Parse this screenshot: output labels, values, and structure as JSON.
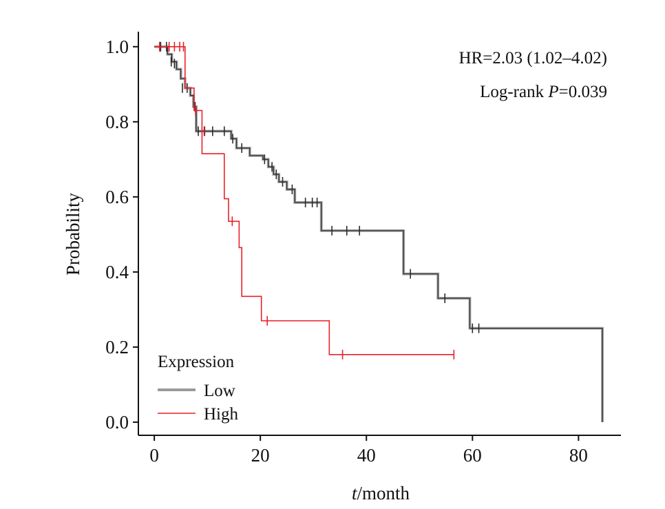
{
  "chart_data": {
    "type": "line",
    "plot_style": "kaplan-meier",
    "xlabel_italic": "t",
    "xlabel_rest": "/month",
    "ylabel": "Probability",
    "xlim": [
      -3,
      88
    ],
    "ylim": [
      -0.035,
      1.04
    ],
    "xticks": [
      0,
      20,
      40,
      60,
      80
    ],
    "xtick_labels": [
      "0",
      "20",
      "40",
      "60",
      "80"
    ],
    "yticks": [
      0.0,
      0.2,
      0.4,
      0.6,
      0.8,
      1.0
    ],
    "ytick_labels": [
      "0.0",
      "0.2",
      "0.4",
      "0.6",
      "0.8",
      "1.0"
    ],
    "grid": false,
    "annotations": {
      "hr": "HR=2.03 (1.02–4.02)",
      "logrank_prefix": "Log-rank ",
      "logrank_p": "P",
      "logrank_value": "=0.039"
    },
    "legend": {
      "title": "Expression",
      "position": "bottom-left",
      "entries": [
        "Low",
        "High"
      ]
    },
    "series": [
      {
        "name": "Low",
        "color": "#2b2b2b",
        "legend_color": "#9a9a9a",
        "steps": [
          [
            0,
            1.0
          ],
          [
            2.5,
            0.98
          ],
          [
            3.3,
            0.96
          ],
          [
            4.2,
            0.94
          ],
          [
            5.0,
            0.915
          ],
          [
            5.8,
            0.89
          ],
          [
            6.8,
            0.87
          ],
          [
            7.4,
            0.84
          ],
          [
            7.9,
            0.775
          ],
          [
            14.5,
            0.755
          ],
          [
            15.5,
            0.73
          ],
          [
            18.0,
            0.71
          ],
          [
            20.5,
            0.7
          ],
          [
            21.5,
            0.68
          ],
          [
            22.5,
            0.66
          ],
          [
            23.5,
            0.64
          ],
          [
            25.0,
            0.62
          ],
          [
            26.5,
            0.585
          ],
          [
            31.5,
            0.51
          ],
          [
            47.0,
            0.395
          ],
          [
            53.5,
            0.33
          ],
          [
            59.5,
            0.25
          ],
          [
            84.5,
            0.0
          ]
        ],
        "end": 84.5,
        "censors": [
          [
            1.2,
            1.0
          ],
          [
            2.3,
            1.0
          ],
          [
            3.2,
            0.96
          ],
          [
            3.8,
            0.955
          ],
          [
            5.3,
            0.89
          ],
          [
            6.2,
            0.89
          ],
          [
            7.7,
            0.84
          ],
          [
            8.3,
            0.775
          ],
          [
            9.5,
            0.775
          ],
          [
            11.0,
            0.775
          ],
          [
            13.2,
            0.775
          ],
          [
            14.8,
            0.755
          ],
          [
            16.5,
            0.73
          ],
          [
            20.8,
            0.7
          ],
          [
            22.2,
            0.68
          ],
          [
            23.0,
            0.66
          ],
          [
            24.2,
            0.64
          ],
          [
            26.0,
            0.62
          ],
          [
            28.5,
            0.585
          ],
          [
            29.8,
            0.585
          ],
          [
            30.7,
            0.585
          ],
          [
            33.5,
            0.51
          ],
          [
            36.3,
            0.51
          ],
          [
            38.7,
            0.51
          ],
          [
            48.3,
            0.395
          ],
          [
            54.8,
            0.33
          ],
          [
            60.0,
            0.25
          ],
          [
            61.2,
            0.25
          ]
        ]
      },
      {
        "name": "High",
        "color": "#e8202a",
        "legend_color": "#e8202a",
        "steps": [
          [
            0,
            1.0
          ],
          [
            5.8,
            0.89
          ],
          [
            7.5,
            0.83
          ],
          [
            9.0,
            0.715
          ],
          [
            13.2,
            0.595
          ],
          [
            14.0,
            0.535
          ],
          [
            16.0,
            0.465
          ],
          [
            16.5,
            0.335
          ],
          [
            20.2,
            0.27
          ],
          [
            33.0,
            0.18
          ]
        ],
        "end": 56.5,
        "censors": [
          [
            1.0,
            1.0
          ],
          [
            2.8,
            1.0
          ],
          [
            3.8,
            1.0
          ],
          [
            4.8,
            1.0
          ],
          [
            5.5,
            1.0
          ],
          [
            7.8,
            0.83
          ],
          [
            9.4,
            0.775
          ],
          [
            14.7,
            0.535
          ],
          [
            21.3,
            0.27
          ],
          [
            35.5,
            0.18
          ],
          [
            56.5,
            0.18
          ]
        ]
      }
    ]
  }
}
